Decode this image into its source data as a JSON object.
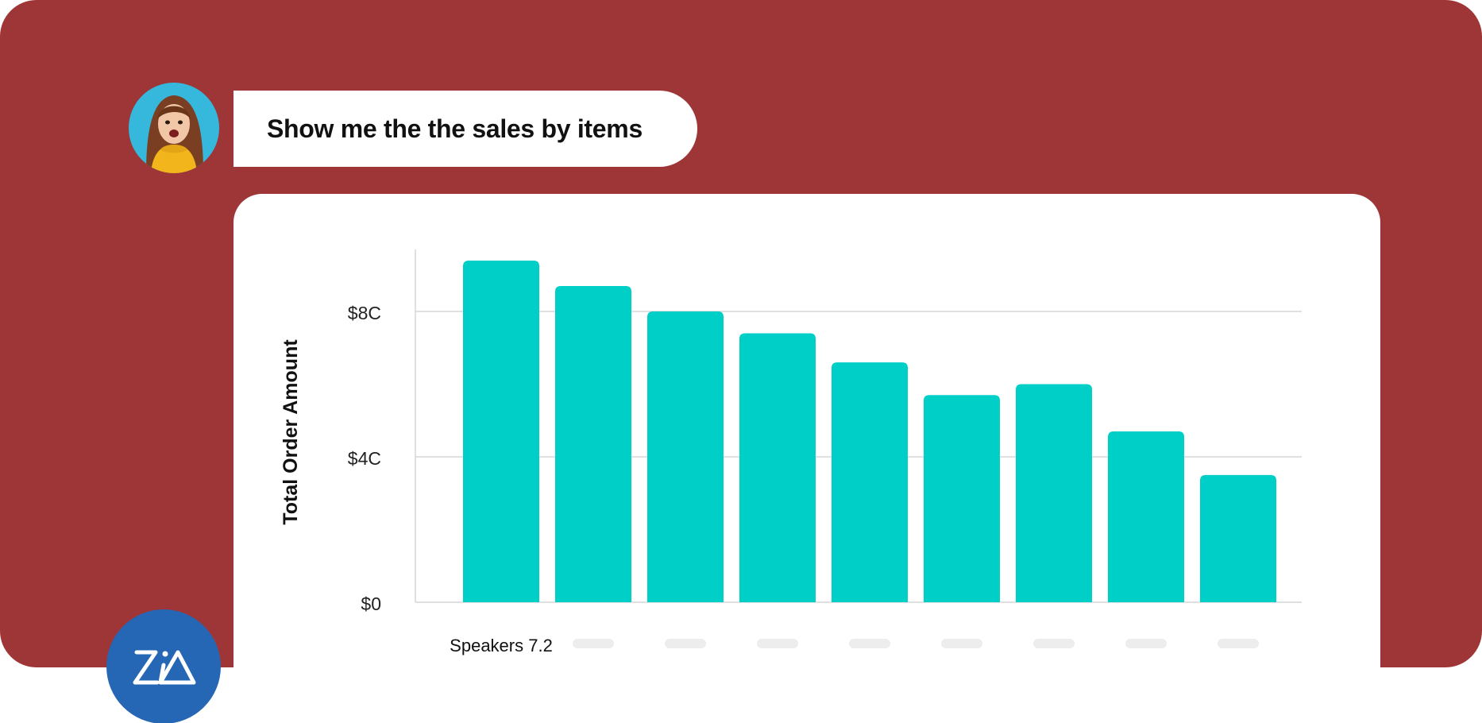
{
  "colors": {
    "background_panel": "#9E3638",
    "bar": "#00CFC8",
    "gridline": "#D6D6D6",
    "zia_badge": "#2667B5",
    "avatar_bg": "#35B8DC",
    "placeholder_label": "#EDEDED"
  },
  "prompt": {
    "text": "Show me the the sales by items"
  },
  "zia": {
    "icon": "zia-logo-icon"
  },
  "avatar": {
    "icon": "user-avatar"
  },
  "chart_data": {
    "type": "bar",
    "ylabel": "Total Order Amount",
    "xlabel": "",
    "categories": [
      "Speakers 7.2",
      "",
      "",
      "",
      "",
      "",
      "",
      "",
      ""
    ],
    "values": [
      9.4,
      8.7,
      8.0,
      7.4,
      6.6,
      5.7,
      6.0,
      4.7,
      3.5
    ],
    "ylim": [
      0,
      9.4
    ],
    "yticks": [
      {
        "value": 0,
        "label": "$0"
      },
      {
        "value": 4,
        "label": "$4C"
      },
      {
        "value": 8,
        "label": "$8C"
      }
    ],
    "grid": true,
    "legend": "none"
  }
}
